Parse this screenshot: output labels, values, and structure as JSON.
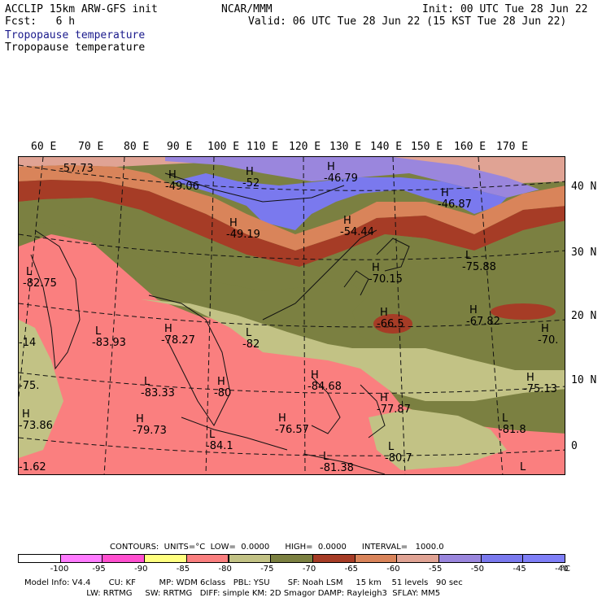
{
  "header": {
    "model_line": "ACCLIP 15km ARW-GFS init",
    "fcst_line": "Fcst:   6 h",
    "org": "NCAR/MMM",
    "init": "Init: 00 UTC Tue 28 Jun 22",
    "valid": "Valid: 06 UTC Tue 28 Jun 22 (15 KST Tue 28 Jun 22)",
    "field1": "Tropopause temperature",
    "field2": "Tropopause temperature"
  },
  "lon_labels": [
    "60 E",
    "70 E",
    "80 E",
    "90 E",
    "100 E",
    "110 E",
    "120 E",
    "130 E",
    "140 E",
    "150 E",
    "160 E",
    "170 E"
  ],
  "lat_labels": [
    "40 N",
    "30 N",
    "20 N",
    "10 N",
    "0"
  ],
  "map_labels": [
    {
      "m": "",
      "v": "-57.73"
    },
    {
      "m": "H",
      "v": "-49.06"
    },
    {
      "m": "H",
      "v": "-52"
    },
    {
      "m": "H",
      "v": "-46.79"
    },
    {
      "m": "H",
      "v": "-46.87"
    },
    {
      "m": "H",
      "v": "-49.19"
    },
    {
      "m": "H",
      "v": "-54.44"
    },
    {
      "m": "L",
      "v": "-82.75"
    },
    {
      "m": "L",
      "v": "-75.88"
    },
    {
      "m": "H",
      "v": "-70.15"
    },
    {
      "m": "H",
      "v": "-66.5"
    },
    {
      "m": "H",
      "v": "-67.82"
    },
    {
      "m": "H",
      "v": "-70."
    },
    {
      "m": "L",
      "v": "-83.93"
    },
    {
      "m": "H",
      "v": "-78.27"
    },
    {
      "m": "L",
      "v": "-82"
    },
    {
      "m": "",
      "v": "-14"
    },
    {
      "m": "",
      "v": "-75."
    },
    {
      "m": "L",
      "v": "-83.33"
    },
    {
      "m": "H",
      "v": "-80"
    },
    {
      "m": "H",
      "v": "-84.68"
    },
    {
      "m": "H",
      "v": "-75.13"
    },
    {
      "m": "H",
      "v": "-77.87"
    },
    {
      "m": "H",
      "v": "-73.86"
    },
    {
      "m": "H",
      "v": "-79.73"
    },
    {
      "m": "H",
      "v": "-76.57"
    },
    {
      "m": "L",
      "v": "-81.8"
    },
    {
      "m": "L",
      "v": "-84.1"
    },
    {
      "m": "L",
      "v": "-80.7"
    },
    {
      "m": "L",
      "v": "-81.38"
    },
    {
      "m": "",
      "v": "-1.62"
    },
    {
      "m": "L",
      "v": ""
    }
  ],
  "contours": {
    "text": "CONTOURS:  UNITS=°C  LOW=  0.0000      HIGH=  0.0000      INTERVAL=   1000.0"
  },
  "colorbar": {
    "colors": [
      "#ffffff",
      "#ff7bff",
      "#ff4fcf",
      "#ffff80",
      "#fa7f7f",
      "#c2c285",
      "#7b8041",
      "#a63c26",
      "#d9845a",
      "#e0a394",
      "#9a86dd",
      "#7a79ee",
      "#7f7ff7"
    ],
    "labels": [
      "-100",
      "-95",
      "-90",
      "-85",
      "-80",
      "-75",
      "-70",
      "-65",
      "-60",
      "-55",
      "-50",
      "-45",
      "-40"
    ],
    "unit": "°C"
  },
  "model_info": {
    "line1": "Model Info: V4.4       CU: KF         MP: WDM 6class   PBL: YSU       SF: Noah LSM     15 km    51 levels   90 sec",
    "line2": "                        LW: RRTMG     SW: RRTMG   DIFF: simple KM: 2D Smagor DAMP: Rayleigh3  SFLAY: MM5"
  }
}
